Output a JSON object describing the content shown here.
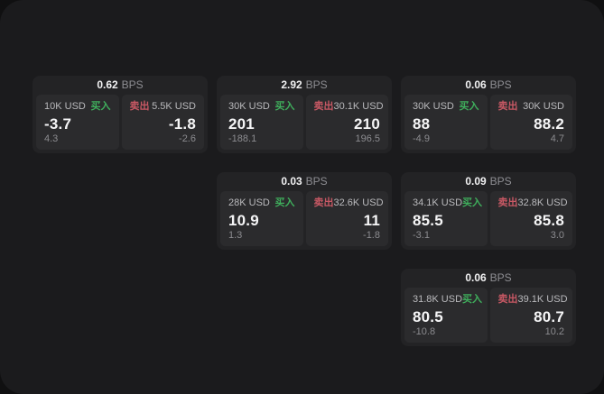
{
  "labels": {
    "bps_unit": "BPS",
    "buy": "买入",
    "sell": "卖出"
  },
  "colors": {
    "buy_green": "#3fae5c",
    "sell_red": "#c75864",
    "page_bg": "#101011",
    "panel_bg": "#1b1b1d",
    "card_bg": "#232325",
    "tile_bg": "#2b2b2d"
  },
  "cards": [
    {
      "bps": "0.62",
      "col": 1,
      "row": 1,
      "buy": {
        "amount": "10K USD",
        "price": "-3.7",
        "delta": "4.3"
      },
      "sell": {
        "amount": "5.5K USD",
        "price": "-1.8",
        "delta": "-2.6"
      }
    },
    {
      "bps": "2.92",
      "col": 2,
      "row": 1,
      "buy": {
        "amount": "30K USD",
        "price": "201",
        "delta": "-188.1"
      },
      "sell": {
        "amount": "30.1K USD",
        "price": "210",
        "delta": "196.5"
      }
    },
    {
      "bps": "0.06",
      "col": 3,
      "row": 1,
      "buy": {
        "amount": "30K USD",
        "price": "88",
        "delta": "-4.9"
      },
      "sell": {
        "amount": "30K USD",
        "price": "88.2",
        "delta": "4.7"
      }
    },
    {
      "bps": "0.03",
      "col": 2,
      "row": 2,
      "buy": {
        "amount": "28K USD",
        "price": "10.9",
        "delta": "1.3"
      },
      "sell": {
        "amount": "32.6K USD",
        "price": "11",
        "delta": "-1.8"
      }
    },
    {
      "bps": "0.09",
      "col": 3,
      "row": 2,
      "buy": {
        "amount": "34.1K USD",
        "price": "85.5",
        "delta": "-3.1"
      },
      "sell": {
        "amount": "32.8K USD",
        "price": "85.8",
        "delta": "3.0"
      }
    },
    {
      "bps": "0.06",
      "col": 3,
      "row": 3,
      "buy": {
        "amount": "31.8K USD",
        "price": "80.5",
        "delta": "-10.8"
      },
      "sell": {
        "amount": "39.1K USD",
        "price": "80.7",
        "delta": "10.2"
      }
    }
  ]
}
